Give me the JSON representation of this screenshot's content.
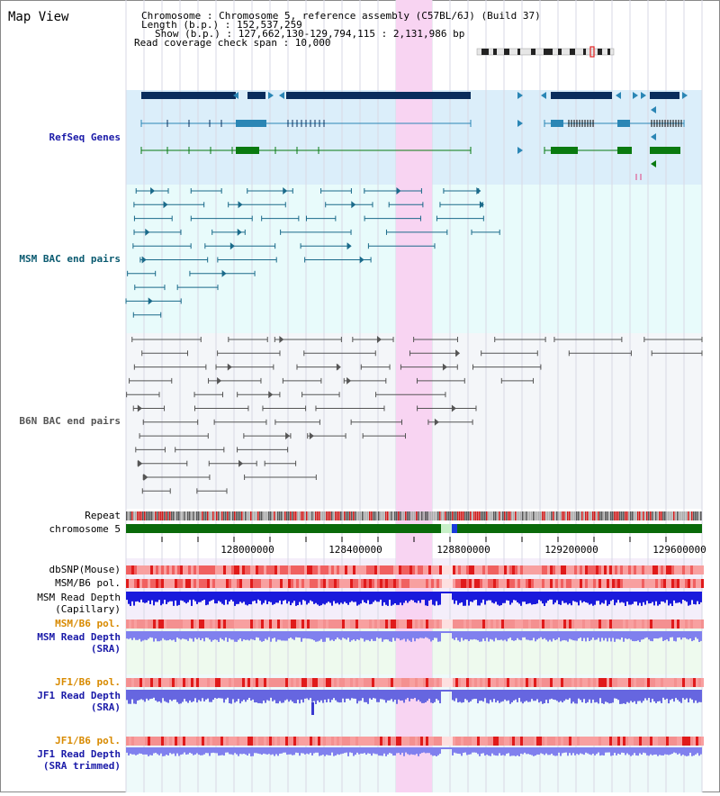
{
  "title": "Map View",
  "info": {
    "chromosome_line": "Chromosome     : Chromosome 5, reference assembly (C57BL/6J) (Build 37)",
    "length_line": "Length (b.p.) : 152,537,259",
    "show_line": "Show (b.p.) : 127,662,130-129,794,115 : 2,131,986 bp",
    "coverage_line": "Read coverage check span : 10,000"
  },
  "tracks": {
    "refseq": "RefSeq Genes",
    "msm_bac": "MSM BAC end pairs",
    "b6n_bac": "B6N BAC end pairs",
    "repeat": "Repeat",
    "chromosome": "chromosome 5",
    "dbsnp": "dbSNP(Mouse)",
    "msm_pol": "MSM/B6 pol.",
    "msm_depth_cap_1": "MSM Read Depth",
    "msm_depth_cap_2": "(Capillary)",
    "msm_pol2": "MSM/B6 pol.",
    "msm_depth_sra_1": "MSM Read Depth",
    "msm_depth_sra_2": "(SRA)",
    "jf1_pol": "JF1/B6 pol.",
    "jf1_depth_1": "JF1 Read Depth",
    "jf1_depth_2": "(SRA)",
    "jf1_pol2": "JF1/B6 pol.",
    "jf1_trim_1": "JF1 Read Depth",
    "jf1_trim_2": "(SRA trimmed)"
  },
  "axis": {
    "ticks": [
      "128000000",
      "128400000",
      "128800000",
      "129200000",
      "129600000"
    ]
  },
  "colors": {
    "highlight": "#f8d4f2",
    "refseq_bg": "#dbeefa",
    "msm_bg": "#e8fbfb",
    "b6n_bg": "#f4f6f9",
    "gene_dark": "#0a2d5c",
    "gene_mid": "#2b86b5",
    "gene_green": "#0a7a10",
    "bac_teal": "#1a6a8a",
    "bac_gray": "#555555",
    "chrom_green": "#0a6a0a",
    "depth_blue": "#1a1adc",
    "depth_light": "#8080ee",
    "label_blue": "#1a1aa8",
    "label_teal": "#0a5a70",
    "label_orange": "#d88a00"
  }
}
